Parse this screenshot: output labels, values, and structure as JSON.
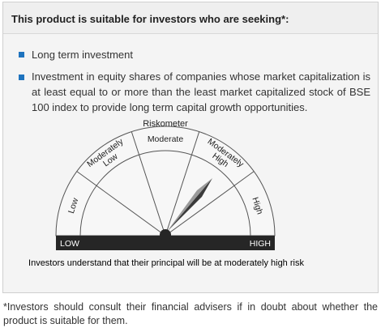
{
  "header": {
    "title": "This product is suitable for investors who are seeking*:"
  },
  "bullets": [
    "Long term investment",
    "Investment in equity shares of companies whose market capitalization is at least equal to or more than the least market capitalized stock of BSE 100 index to provide long term capital growth opportunities."
  ],
  "riskometer": {
    "title": "Riskometer",
    "segments": [
      [
        "Low"
      ],
      [
        "Moderately",
        "Low"
      ],
      [
        "Moderate"
      ],
      [
        "Moderately",
        "High"
      ],
      [
        "High"
      ]
    ],
    "low_label": "LOW",
    "high_label": "HIGH",
    "caption": "Investors understand that their principal will be at moderately high risk"
  },
  "footnote": "*Investors should consult their financial advisers if in doubt about whether the product is suitable for them."
}
